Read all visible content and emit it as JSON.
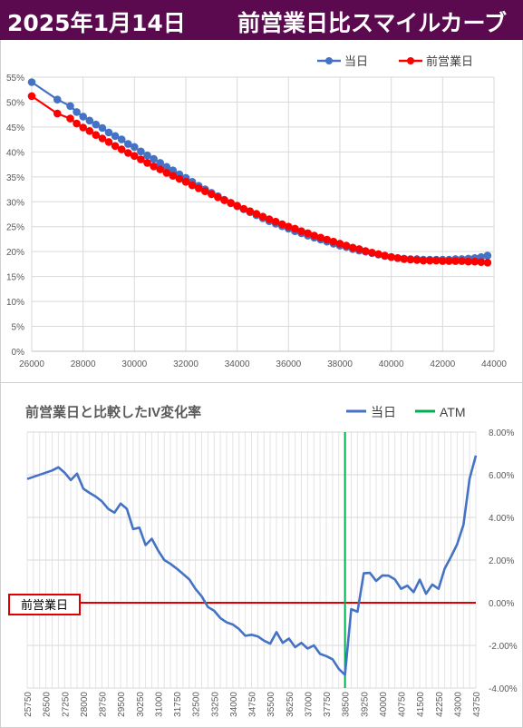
{
  "banner": {
    "date": "2025年1月14日",
    "title": "前営業日比スマイルカーブ"
  },
  "colors": {
    "banner_bg": "#5b0a4f",
    "today": "#4472c4",
    "prev_day": "#ff0000",
    "atm": "#00b050",
    "zero_line": "#e00000"
  },
  "chart_data": [
    {
      "type": "line",
      "title": "",
      "legend": {
        "position": "top-right",
        "entries": [
          "当日",
          "前営業日"
        ]
      },
      "xlim": [
        26000,
        44000
      ],
      "ylim": [
        0,
        55
      ],
      "x_ticks": [
        "26000",
        "28000",
        "30000",
        "32000",
        "34000",
        "36000",
        "38000",
        "40000",
        "42000",
        "44000"
      ],
      "y_ticks": [
        "0%",
        "5%",
        "10%",
        "15%",
        "20%",
        "25%",
        "30%",
        "35%",
        "40%",
        "45%",
        "50%",
        "55%"
      ],
      "grid": true,
      "series": [
        {
          "name": "当日",
          "points": [
            [
              26000,
              54.0
            ],
            [
              27000,
              50.5
            ],
            [
              27500,
              49.2
            ],
            [
              27750,
              48.0
            ],
            [
              28000,
              47.1
            ],
            [
              28250,
              46.3
            ],
            [
              28500,
              45.5
            ],
            [
              28750,
              44.8
            ],
            [
              29000,
              43.9
            ],
            [
              29250,
              43.2
            ],
            [
              29500,
              42.5
            ],
            [
              29750,
              41.6
            ],
            [
              30000,
              41.0
            ],
            [
              30250,
              40.1
            ],
            [
              30500,
              39.3
            ],
            [
              30750,
              38.6
            ],
            [
              31000,
              37.8
            ],
            [
              31250,
              37.0
            ],
            [
              31500,
              36.3
            ],
            [
              31750,
              35.5
            ],
            [
              32000,
              34.8
            ],
            [
              32250,
              34.0
            ],
            [
              32500,
              33.2
            ],
            [
              32750,
              32.5
            ],
            [
              33000,
              31.8
            ],
            [
              33250,
              31.1
            ],
            [
              33500,
              30.4
            ],
            [
              33750,
              29.7
            ],
            [
              34000,
              29.1
            ],
            [
              34250,
              28.5
            ],
            [
              34500,
              27.9
            ],
            [
              34750,
              27.3
            ],
            [
              35000,
              26.7
            ],
            [
              35250,
              26.1
            ],
            [
              35500,
              25.6
            ],
            [
              35750,
              25.1
            ],
            [
              36000,
              24.6
            ],
            [
              36250,
              24.1
            ],
            [
              36500,
              23.7
            ],
            [
              36750,
              23.2
            ],
            [
              37000,
              22.8
            ],
            [
              37250,
              22.4
            ],
            [
              37500,
              22.0
            ],
            [
              37750,
              21.6
            ],
            [
              38000,
              21.2
            ],
            [
              38250,
              20.9
            ],
            [
              38500,
              20.5
            ],
            [
              38750,
              20.2
            ],
            [
              39000,
              20.0
            ],
            [
              39250,
              19.7
            ],
            [
              39500,
              19.4
            ],
            [
              39750,
              19.1
            ],
            [
              40000,
              18.9
            ],
            [
              40250,
              18.7
            ],
            [
              40500,
              18.6
            ],
            [
              40750,
              18.5
            ],
            [
              41000,
              18.5
            ],
            [
              41250,
              18.4
            ],
            [
              41500,
              18.4
            ],
            [
              41750,
              18.4
            ],
            [
              42000,
              18.4
            ],
            [
              42250,
              18.4
            ],
            [
              42500,
              18.5
            ],
            [
              42750,
              18.5
            ],
            [
              43000,
              18.6
            ],
            [
              43250,
              18.7
            ],
            [
              43500,
              18.9
            ],
            [
              43750,
              19.2
            ]
          ]
        },
        {
          "name": "前営業日",
          "points": [
            [
              26000,
              51.2
            ],
            [
              27000,
              47.7
            ],
            [
              27500,
              46.7
            ],
            [
              27750,
              45.7
            ],
            [
              28000,
              44.9
            ],
            [
              28250,
              44.2
            ],
            [
              28500,
              43.4
            ],
            [
              28750,
              42.7
            ],
            [
              29000,
              42.0
            ],
            [
              29250,
              41.2
            ],
            [
              29500,
              40.5
            ],
            [
              29750,
              39.8
            ],
            [
              30000,
              39.2
            ],
            [
              30250,
              38.5
            ],
            [
              30500,
              37.8
            ],
            [
              30750,
              37.1
            ],
            [
              31000,
              36.5
            ],
            [
              31250,
              35.8
            ],
            [
              31500,
              35.2
            ],
            [
              31750,
              34.6
            ],
            [
              32000,
              34.0
            ],
            [
              32250,
              33.3
            ],
            [
              32500,
              32.7
            ],
            [
              32750,
              32.1
            ],
            [
              33000,
              31.5
            ],
            [
              33250,
              30.9
            ],
            [
              33500,
              30.3
            ],
            [
              33750,
              29.8
            ],
            [
              34000,
              29.2
            ],
            [
              34250,
              28.6
            ],
            [
              34500,
              28.1
            ],
            [
              34750,
              27.6
            ],
            [
              35000,
              27.0
            ],
            [
              35250,
              26.5
            ],
            [
              35500,
              26.0
            ],
            [
              35750,
              25.5
            ],
            [
              36000,
              25.0
            ],
            [
              36250,
              24.6
            ],
            [
              36500,
              24.1
            ],
            [
              36750,
              23.7
            ],
            [
              37000,
              23.2
            ],
            [
              37250,
              22.8
            ],
            [
              37500,
              22.4
            ],
            [
              37750,
              22.0
            ],
            [
              38000,
              21.6
            ],
            [
              38250,
              21.2
            ],
            [
              38500,
              20.8
            ],
            [
              38750,
              20.5
            ],
            [
              39000,
              20.1
            ],
            [
              39250,
              19.8
            ],
            [
              39500,
              19.5
            ],
            [
              39750,
              19.2
            ],
            [
              40000,
              18.9
            ],
            [
              40250,
              18.7
            ],
            [
              40500,
              18.5
            ],
            [
              40750,
              18.4
            ],
            [
              41000,
              18.3
            ],
            [
              41250,
              18.2
            ],
            [
              41500,
              18.2
            ],
            [
              41750,
              18.2
            ],
            [
              42000,
              18.1
            ],
            [
              42250,
              18.1
            ],
            [
              42500,
              18.1
            ],
            [
              42750,
              18.1
            ],
            [
              43000,
              18.0
            ],
            [
              43250,
              18.0
            ],
            [
              43500,
              17.9
            ],
            [
              43750,
              17.8
            ]
          ]
        }
      ]
    },
    {
      "type": "line",
      "title": "前営業日と比較したIV変化率",
      "legend": {
        "position": "top-right",
        "entries": [
          "当日",
          "ATM"
        ]
      },
      "categories": [
        "25750",
        "26500",
        "27250",
        "28000",
        "28750",
        "29500",
        "30250",
        "31000",
        "31750",
        "32500",
        "33250",
        "34000",
        "34750",
        "35500",
        "36250",
        "37000",
        "37750",
        "38500",
        "39250",
        "40000",
        "40750",
        "41500",
        "42250",
        "43000",
        "43750"
      ],
      "x_tick_labels": [
        "25750",
        "26500",
        "27250",
        "28000",
        "28750",
        "29500",
        "30250",
        "31000",
        "31750",
        "32500",
        "33250",
        "34000",
        "34750",
        "35500",
        "36250",
        "37000",
        "37750",
        "38500",
        "39250",
        "40000",
        "40750",
        "41500",
        "42250",
        "43000",
        "43750"
      ],
      "xlim": [
        25750,
        43750
      ],
      "ylim": [
        -4,
        8
      ],
      "y_ticks": [
        "-4.00%",
        "-2.00%",
        "0.00%",
        "2.00%",
        "4.00%",
        "6.00%",
        "8.00%"
      ],
      "atm_strike": 38500,
      "zero_label": "前営業日",
      "grid": true,
      "series": [
        {
          "name": "当日",
          "points": [
            [
              25750,
              5.8
            ],
            [
              26750,
              6.2
            ],
            [
              27000,
              6.35
            ],
            [
              27250,
              6.1
            ],
            [
              27500,
              5.75
            ],
            [
              27750,
              6.05
            ],
            [
              28000,
              5.35
            ],
            [
              28250,
              5.15
            ],
            [
              28500,
              4.98
            ],
            [
              28750,
              4.75
            ],
            [
              29000,
              4.4
            ],
            [
              29250,
              4.22
            ],
            [
              29500,
              4.65
            ],
            [
              29750,
              4.4
            ],
            [
              30000,
              3.45
            ],
            [
              30250,
              3.52
            ],
            [
              30500,
              2.7
            ],
            [
              30750,
              3.0
            ],
            [
              31000,
              2.45
            ],
            [
              31250,
              2.0
            ],
            [
              31500,
              1.82
            ],
            [
              31750,
              1.6
            ],
            [
              32000,
              1.35
            ],
            [
              32250,
              1.1
            ],
            [
              32500,
              0.65
            ],
            [
              32750,
              0.3
            ],
            [
              33000,
              -0.2
            ],
            [
              33250,
              -0.38
            ],
            [
              33500,
              -0.72
            ],
            [
              33750,
              -0.92
            ],
            [
              34000,
              -1.02
            ],
            [
              34250,
              -1.24
            ],
            [
              34500,
              -1.55
            ],
            [
              34750,
              -1.5
            ],
            [
              35000,
              -1.58
            ],
            [
              35250,
              -1.78
            ],
            [
              35500,
              -1.92
            ],
            [
              35750,
              -1.38
            ],
            [
              36000,
              -1.88
            ],
            [
              36250,
              -1.68
            ],
            [
              36500,
              -2.08
            ],
            [
              36750,
              -1.88
            ],
            [
              37000,
              -2.15
            ],
            [
              37250,
              -2.0
            ],
            [
              37500,
              -2.4
            ],
            [
              37750,
              -2.5
            ],
            [
              38000,
              -2.65
            ],
            [
              38250,
              -3.1
            ],
            [
              38500,
              -3.38
            ],
            [
              38750,
              -0.3
            ],
            [
              39000,
              -0.42
            ],
            [
              39250,
              1.38
            ],
            [
              39500,
              1.4
            ],
            [
              39750,
              1.02
            ],
            [
              40000,
              1.28
            ],
            [
              40250,
              1.27
            ],
            [
              40500,
              1.1
            ],
            [
              40750,
              0.65
            ],
            [
              41000,
              0.8
            ],
            [
              41250,
              0.5
            ],
            [
              41500,
              1.08
            ],
            [
              41750,
              0.42
            ],
            [
              42000,
              0.85
            ],
            [
              42250,
              0.65
            ],
            [
              42500,
              1.6
            ],
            [
              42750,
              2.15
            ],
            [
              43000,
              2.75
            ],
            [
              43250,
              3.65
            ],
            [
              43500,
              5.82
            ],
            [
              43750,
              6.9
            ]
          ]
        }
      ]
    }
  ]
}
